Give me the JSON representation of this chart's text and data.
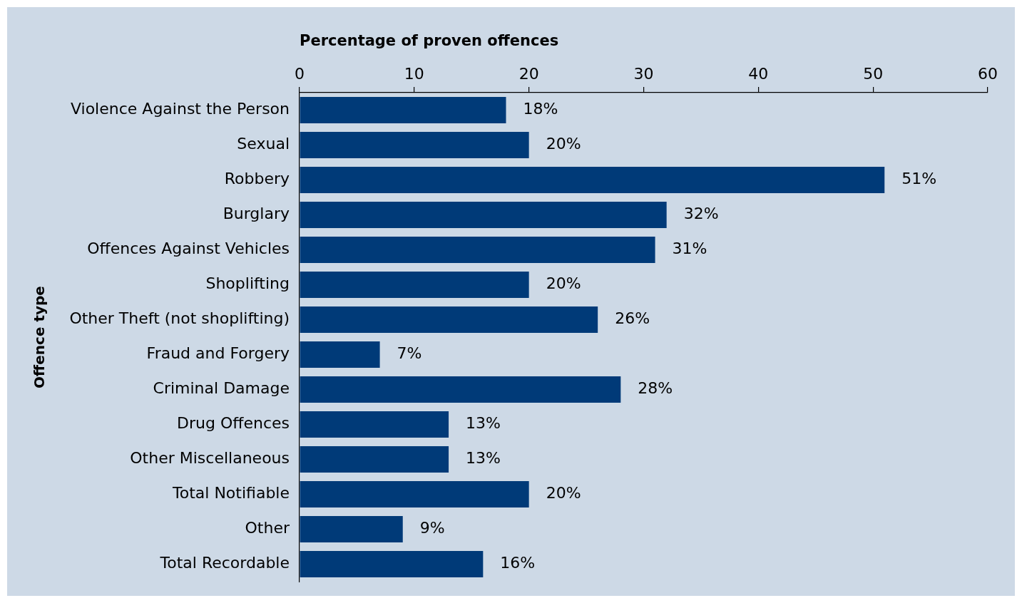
{
  "chart_data": {
    "type": "bar",
    "orientation": "horizontal",
    "xlabel": "Percentage of proven offences",
    "ylabel": "Offence type",
    "categories": [
      "Violence Against the Person",
      "Sexual",
      "Robbery",
      "Burglary",
      "Offences Against Vehicles",
      "Shoplifting",
      "Other Theft (not shoplifting)",
      "Fraud and Forgery",
      "Criminal Damage",
      "Drug Offences",
      "Other Miscellaneous",
      "Total Notifiable",
      "Other",
      "Total Recordable"
    ],
    "values": [
      18,
      20,
      51,
      32,
      31,
      20,
      26,
      7,
      28,
      13,
      13,
      20,
      9,
      16
    ],
    "value_labels": [
      "18%",
      "20%",
      "51%",
      "32%",
      "31%",
      "20%",
      "26%",
      "7%",
      "28%",
      "13%",
      "13%",
      "20%",
      "9%",
      "16%"
    ],
    "color": "#003a78",
    "xlim": [
      0,
      60
    ],
    "xticks": [
      0,
      10,
      20,
      30,
      40,
      50,
      60
    ],
    "legend": false
  }
}
